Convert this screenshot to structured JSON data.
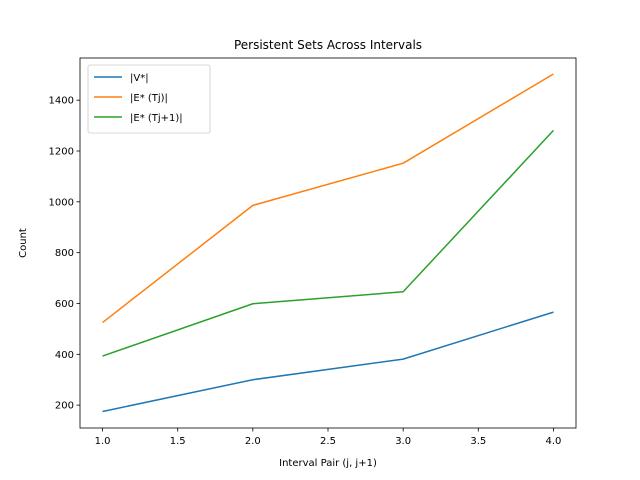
{
  "chart_data": {
    "type": "line",
    "title": "Persistent Sets Across Intervals",
    "xlabel": "Interval Pair (j, j+1)",
    "ylabel": "Count",
    "x": [
      1.0,
      2.0,
      3.0,
      4.0
    ],
    "xlim": [
      0.85,
      4.15
    ],
    "ylim": [
      110,
      1566
    ],
    "xticks": [
      1.0,
      1.5,
      2.0,
      2.5,
      3.0,
      3.5,
      4.0
    ],
    "xtick_labels": [
      "1.0",
      "1.5",
      "2.0",
      "2.5",
      "3.0",
      "3.5",
      "4.0"
    ],
    "yticks": [
      200,
      400,
      600,
      800,
      1000,
      1200,
      1400
    ],
    "ytick_labels": [
      "200",
      "400",
      "600",
      "800",
      "1000",
      "1200",
      "1400"
    ],
    "grid": false,
    "legend_position": "upper-left",
    "series": [
      {
        "name": "|V*|",
        "color": "#1f77b4",
        "values": [
          175,
          300,
          381,
          566
        ]
      },
      {
        "name": "|E* (Tj)|",
        "color": "#ff7f0e",
        "values": [
          525,
          986,
          1152,
          1503
        ]
      },
      {
        "name": "|E* (Tj+1)|",
        "color": "#2ca02c",
        "values": [
          393,
          599,
          646,
          1281
        ]
      }
    ]
  }
}
